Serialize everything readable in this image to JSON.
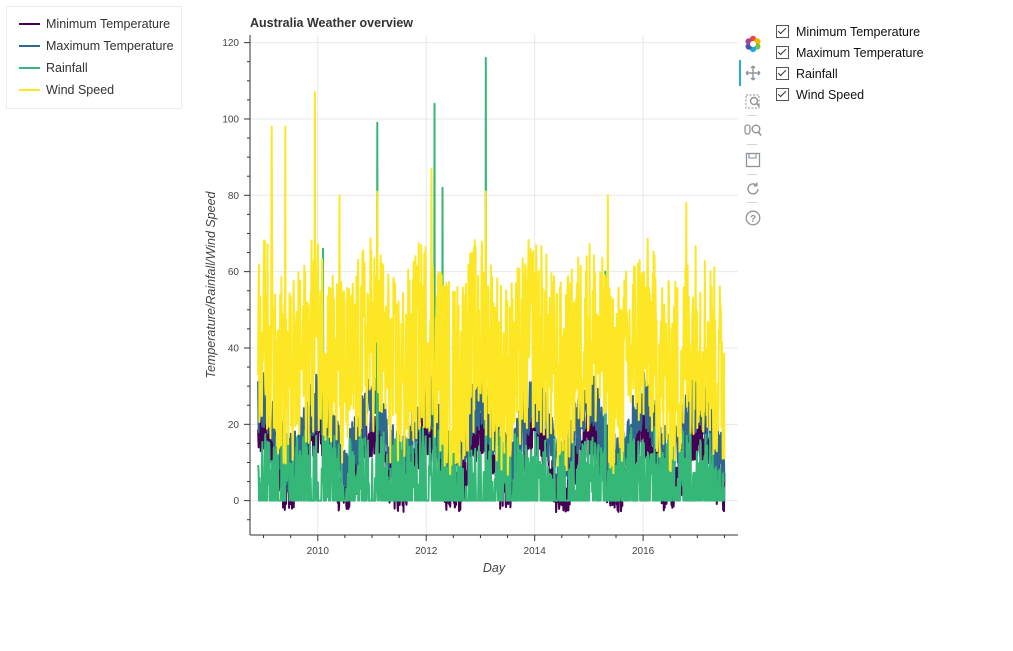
{
  "legend": {
    "items": [
      {
        "label": "Minimum Temperature",
        "color": "#440154"
      },
      {
        "label": "Maximum Temperature",
        "color": "#30678d"
      },
      {
        "label": "Rainfall",
        "color": "#35b778"
      },
      {
        "label": "Wind Speed",
        "color": "#fde724"
      }
    ]
  },
  "toolbar": {
    "tools": [
      {
        "icon": "bokeh-logo-icon"
      },
      {
        "icon": "pan-icon"
      },
      {
        "icon": "box-zoom-icon"
      },
      {
        "icon": "wheel-zoom-icon"
      },
      {
        "icon": "save-icon"
      },
      {
        "icon": "reset-icon"
      },
      {
        "icon": "help-icon"
      }
    ]
  },
  "checkboxes": [
    {
      "label": "Minimum Temperature",
      "checked": true
    },
    {
      "label": "Maximum Temperature",
      "checked": true
    },
    {
      "label": "Rainfall",
      "checked": true
    },
    {
      "label": "Wind Speed",
      "checked": true
    }
  ],
  "chart_data": {
    "type": "line",
    "title": "Australia Weather overview",
    "xlabel": "Day",
    "ylabel": "Temperature/Rainfall/Wind Speed",
    "xlim": [
      2008.75,
      2017.75
    ],
    "ylim": [
      -9,
      122
    ],
    "x_ticks": [
      "2010",
      "2012",
      "2014",
      "2016"
    ],
    "x_tick_values": [
      2010,
      2012,
      2014,
      2016
    ],
    "y_ticks": [
      "0",
      "20",
      "40",
      "60",
      "80",
      "100",
      "120"
    ],
    "y_tick_values": [
      0,
      20,
      40,
      60,
      80,
      100,
      120
    ],
    "grid": true,
    "legend_position": "top-left",
    "series": [
      {
        "name": "Minimum Temperature",
        "color": "#440154",
        "x_range": [
          2008.9,
          2017.5
        ],
        "base": 10,
        "amplitude": 8,
        "noise": 7,
        "floor": -3,
        "spikes": []
      },
      {
        "name": "Maximum Temperature",
        "color": "#30678d",
        "x_range": [
          2008.9,
          2017.5
        ],
        "base": 18,
        "amplitude": 8,
        "noise": 8,
        "floor": 2,
        "spikes": []
      },
      {
        "name": "Rainfall",
        "color": "#35b778",
        "x_range": [
          2008.9,
          2017.5
        ],
        "base": 6,
        "amplitude": 0,
        "noise": 14,
        "floor": 0,
        "spikes": [
          [
            2010.1,
            66
          ],
          [
            2011.1,
            99
          ],
          [
            2012.15,
            104
          ],
          [
            2012.3,
            82
          ],
          [
            2013.1,
            116
          ],
          [
            2015.3,
            60
          ]
        ]
      },
      {
        "name": "Wind Speed",
        "color": "#fde724",
        "x_range": [
          2008.9,
          2017.5
        ],
        "base": 38,
        "amplitude": 6,
        "noise": 26,
        "floor": 6,
        "spikes": [
          [
            2009.15,
            98
          ],
          [
            2009.4,
            98
          ],
          [
            2009.95,
            107
          ],
          [
            2010.4,
            80
          ],
          [
            2011.1,
            81
          ],
          [
            2012.1,
            87
          ],
          [
            2013.1,
            81
          ],
          [
            2015.35,
            80
          ],
          [
            2016.8,
            78
          ]
        ]
      }
    ]
  }
}
